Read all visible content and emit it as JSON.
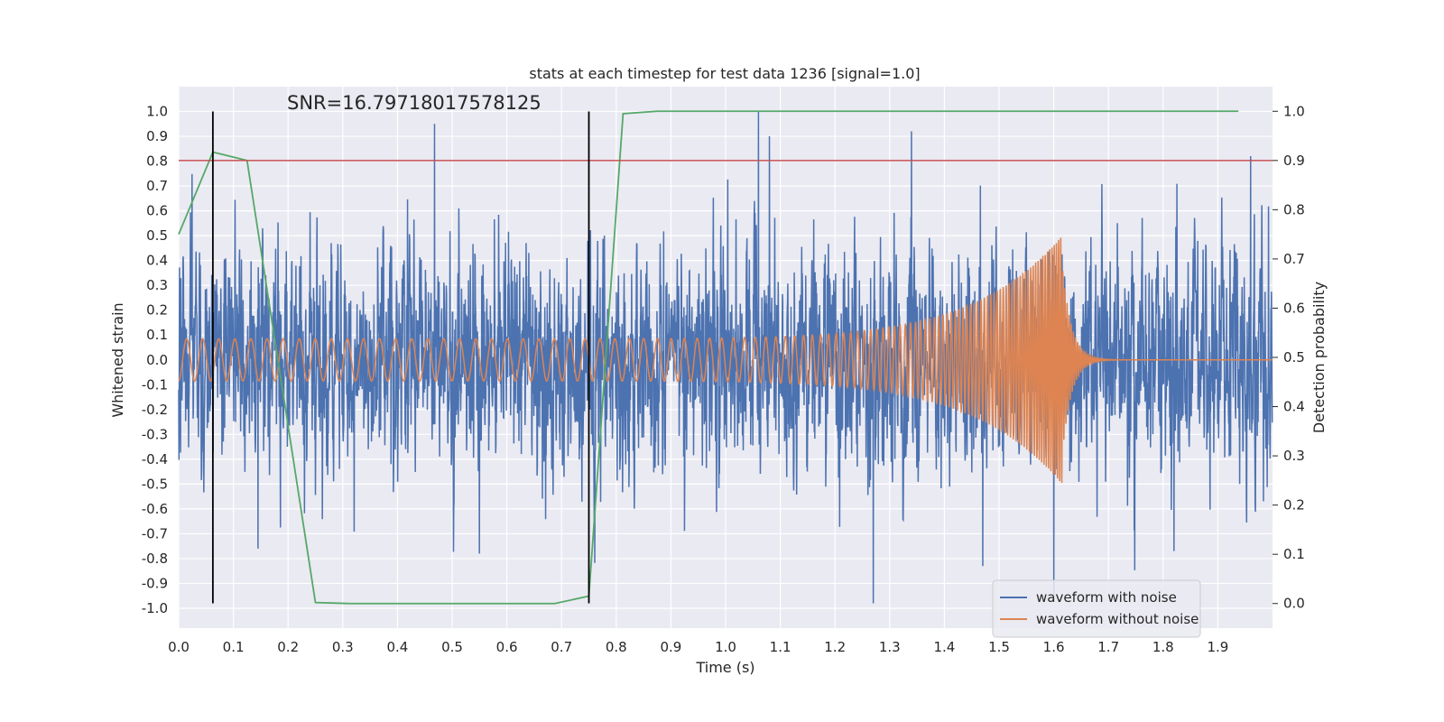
{
  "chart_data": {
    "type": "line",
    "title": "stats at each timestep for test data 1236 [signal=1.0]",
    "xlabel": "Time (s)",
    "ylabel": "Whitened strain",
    "y2label": "Detection probability",
    "annotation": "SNR=16.79718017578125",
    "xlim": [
      0.0,
      2.0
    ],
    "ylim": [
      -1.08,
      1.1
    ],
    "y2lim": [
      -0.05,
      1.05
    ],
    "xticks": [
      "0.0",
      "0.1",
      "0.2",
      "0.3",
      "0.4",
      "0.5",
      "0.6",
      "0.7",
      "0.8",
      "0.9",
      "1.0",
      "1.1",
      "1.2",
      "1.3",
      "1.4",
      "1.5",
      "1.6",
      "1.7",
      "1.8",
      "1.9"
    ],
    "yticks": [
      "1.0",
      "0.9",
      "0.8",
      "0.7",
      "0.6",
      "0.5",
      "0.4",
      "0.3",
      "0.2",
      "0.1",
      "0.0",
      "-0.1",
      "-0.2",
      "-0.3",
      "-0.4",
      "-0.5",
      "-0.6",
      "-0.7",
      "-0.8",
      "-0.9",
      "-1.0"
    ],
    "y2ticks": [
      "1.0",
      "0.9",
      "0.8",
      "0.7",
      "0.6",
      "0.5",
      "0.4",
      "0.3",
      "0.2",
      "0.1",
      "0.0"
    ],
    "grid": true,
    "legend_position": "lower-right",
    "series": [
      {
        "name": "waveform with noise",
        "color": "#4c72b0",
        "axis": "left",
        "kind": "noise",
        "sample_rate": 2048,
        "duration": 2.0,
        "envelope_std": 0.28,
        "peaks": [
          {
            "t": 0.468,
            "v": 0.95
          },
          {
            "t": 1.06,
            "v": 1.0
          },
          {
            "t": 1.08,
            "v": 0.9
          },
          {
            "t": 1.34,
            "v": 0.92
          },
          {
            "t": 1.6,
            "v": 0.98
          },
          {
            "t": 1.27,
            "v": -0.98
          },
          {
            "t": 1.6,
            "v": -0.95
          },
          {
            "t": 0.145,
            "v": -0.76
          },
          {
            "t": 0.55,
            "v": -0.78
          },
          {
            "t": 1.47,
            "v": -0.83
          },
          {
            "t": 1.82,
            "v": -0.77
          },
          {
            "t": 1.96,
            "v": 0.82
          }
        ]
      },
      {
        "name": "waveform without noise",
        "color": "#dd8452",
        "axis": "left",
        "kind": "chirp",
        "amplitude_start": 0.085,
        "amplitude_end": 0.5,
        "freq_start": 34,
        "freq_end": 260,
        "t_merger": 1.615
      },
      {
        "name": "detection probability",
        "color": "#55a868",
        "axis": "right",
        "kind": "line",
        "x": [
          0.0,
          0.0625,
          0.125,
          0.25,
          0.3125,
          0.6875,
          0.75,
          0.8125,
          0.875,
          1.9375
        ],
        "y": [
          0.75,
          0.917,
          0.9,
          0.002,
          0.0,
          0.0,
          0.015,
          0.995,
          1.0,
          1.0
        ]
      },
      {
        "name": "threshold",
        "color": "#c44e52",
        "axis": "right",
        "kind": "hline",
        "y": 0.9
      },
      {
        "name": "marker",
        "color": "#000000",
        "axis": "left",
        "kind": "vlines",
        "x": [
          0.0625,
          0.75
        ],
        "y_range": [
          -0.98,
          1.0
        ]
      }
    ]
  }
}
